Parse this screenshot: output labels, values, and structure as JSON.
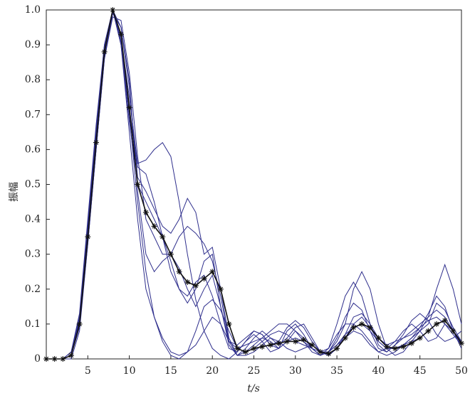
{
  "chart_data": {
    "type": "line",
    "x_label": "t/s",
    "y_label": "振幅",
    "x": [
      0,
      1,
      2,
      3,
      4,
      5,
      6,
      7,
      8,
      9,
      10,
      11,
      12,
      13,
      14,
      15,
      16,
      17,
      18,
      19,
      20,
      21,
      22,
      23,
      24,
      25,
      26,
      27,
      28,
      29,
      30,
      31,
      32,
      33,
      34,
      35,
      36,
      37,
      38,
      39,
      40,
      41,
      42,
      43,
      44,
      45,
      46,
      47,
      48,
      49,
      50
    ],
    "xlim": [
      0,
      50
    ],
    "ylim": [
      0,
      1
    ],
    "xticks": [
      5,
      10,
      15,
      20,
      25,
      30,
      35,
      40,
      45,
      50
    ],
    "yticks": [
      0,
      0.1,
      0.2,
      0.3,
      0.4,
      0.5,
      0.6,
      0.7,
      0.8,
      0.9,
      {
        "value": 1,
        "label": "1.0"
      }
    ],
    "series": [
      {
        "color": "#2e2e8c",
        "values": [
          0,
          0,
          0,
          0.01,
          0.1,
          0.36,
          0.63,
          0.88,
          1.0,
          0.92,
          0.75,
          0.56,
          0.57,
          0.6,
          0.62,
          0.58,
          0.45,
          0.3,
          0.17,
          0.08,
          0.03,
          0.01,
          0,
          0.02,
          0.05,
          0.07,
          0.05,
          0.02,
          0.03,
          0.08,
          0.1,
          0.07,
          0.03,
          0.01,
          0.02,
          0.05,
          0.1,
          0.2,
          0.25,
          0.2,
          0.1,
          0.03,
          0.01,
          0.02,
          0.05,
          0.08,
          0.12,
          0.2,
          0.27,
          0.2,
          0.1
        ]
      },
      {
        "color": "#2e2e8c",
        "values": [
          0,
          0,
          0,
          0.01,
          0.12,
          0.38,
          0.65,
          0.9,
          1.0,
          0.9,
          0.65,
          0.4,
          0.2,
          0.12,
          0.05,
          0.01,
          0,
          0.02,
          0.08,
          0.15,
          0.17,
          0.14,
          0.08,
          0.03,
          0.02,
          0.04,
          0.06,
          0.05,
          0.03,
          0.05,
          0.08,
          0.06,
          0.03,
          0.01,
          0.02,
          0.04,
          0.06,
          0.08,
          0.07,
          0.04,
          0.02,
          0.03,
          0.05,
          0.08,
          0.1,
          0.08,
          0.05,
          0.06,
          0.1,
          0.08,
          0.05
        ]
      },
      {
        "color": "#2e2e8c",
        "values": [
          0,
          0,
          0,
          0,
          0.08,
          0.33,
          0.6,
          0.86,
          0.99,
          0.95,
          0.78,
          0.52,
          0.48,
          0.43,
          0.38,
          0.36,
          0.4,
          0.46,
          0.42,
          0.3,
          0.32,
          0.2,
          0.06,
          0.01,
          0.03,
          0.06,
          0.08,
          0.06,
          0.04,
          0.06,
          0.09,
          0.1,
          0.06,
          0.02,
          0.03,
          0.1,
          0.18,
          0.22,
          0.18,
          0.1,
          0.04,
          0.02,
          0.04,
          0.06,
          0.08,
          0.1,
          0.12,
          0.14,
          0.12,
          0.08,
          0.04
        ]
      },
      {
        "color": "#2e2e8c",
        "values": [
          0,
          0,
          0,
          0.02,
          0.13,
          0.4,
          0.67,
          0.9,
          1.0,
          0.9,
          0.68,
          0.5,
          0.45,
          0.4,
          0.35,
          0.28,
          0.2,
          0.16,
          0.2,
          0.28,
          0.3,
          0.15,
          0.05,
          0.04,
          0.06,
          0.08,
          0.07,
          0.04,
          0.05,
          0.09,
          0.11,
          0.09,
          0.05,
          0.02,
          0.01,
          0.03,
          0.07,
          0.12,
          0.13,
          0.1,
          0.06,
          0.04,
          0.05,
          0.06,
          0.07,
          0.09,
          0.13,
          0.18,
          0.15,
          0.08,
          0.03
        ]
      },
      {
        "color": "#2e2e8c",
        "values": [
          0,
          0,
          0,
          0.01,
          0.1,
          0.34,
          0.6,
          0.87,
          1.0,
          0.95,
          0.8,
          0.48,
          0.3,
          0.25,
          0.28,
          0.3,
          0.26,
          0.2,
          0.15,
          0.2,
          0.24,
          0.15,
          0.04,
          0.01,
          0.01,
          0.02,
          0.04,
          0.06,
          0.05,
          0.03,
          0.02,
          0.03,
          0.04,
          0.02,
          0.01,
          0.03,
          0.06,
          0.1,
          0.12,
          0.09,
          0.05,
          0.03,
          0.03,
          0.04,
          0.05,
          0.06,
          0.08,
          0.1,
          0.11,
          0.08,
          0.05
        ]
      },
      {
        "color": "#2e2e8c",
        "values": [
          0,
          0,
          0,
          0.01,
          0.11,
          0.37,
          0.63,
          0.88,
          1.0,
          0.93,
          0.72,
          0.55,
          0.53,
          0.45,
          0.35,
          0.25,
          0.2,
          0.18,
          0.22,
          0.24,
          0.18,
          0.1,
          0.03,
          0.02,
          0.05,
          0.08,
          0.07,
          0.04,
          0.03,
          0.05,
          0.06,
          0.05,
          0.03,
          0.01,
          0.02,
          0.06,
          0.12,
          0.16,
          0.14,
          0.08,
          0.03,
          0.02,
          0.04,
          0.07,
          0.11,
          0.13,
          0.11,
          0.07,
          0.05,
          0.06,
          0.08
        ]
      },
      {
        "color": "#2e2e8c",
        "values": [
          0,
          0,
          0,
          0.01,
          0.09,
          0.33,
          0.6,
          0.86,
          0.98,
          0.97,
          0.82,
          0.58,
          0.4,
          0.35,
          0.3,
          0.3,
          0.35,
          0.38,
          0.36,
          0.33,
          0.28,
          0.18,
          0.05,
          0.01,
          0.02,
          0.03,
          0.05,
          0.07,
          0.08,
          0.07,
          0.05,
          0.04,
          0.03,
          0.02,
          0.02,
          0.04,
          0.07,
          0.09,
          0.1,
          0.08,
          0.05,
          0.03,
          0.03,
          0.04,
          0.06,
          0.09,
          0.11,
          0.12,
          0.1,
          0.07,
          0.04
        ]
      },
      {
        "color": "#2e2e8c",
        "values": [
          0,
          0,
          0,
          0.02,
          0.12,
          0.39,
          0.66,
          0.89,
          1.0,
          0.91,
          0.7,
          0.45,
          0.25,
          0.12,
          0.06,
          0.02,
          0.01,
          0.02,
          0.04,
          0.08,
          0.12,
          0.1,
          0.05,
          0.03,
          0.04,
          0.05,
          0.06,
          0.08,
          0.1,
          0.1,
          0.08,
          0.05,
          0.02,
          0.01,
          0.03,
          0.07,
          0.1,
          0.1,
          0.08,
          0.05,
          0.02,
          0.01,
          0.02,
          0.04,
          0.06,
          0.08,
          0.1,
          0.16,
          0.14,
          0.09,
          0.05
        ]
      },
      {
        "color": "#111111",
        "marker": "asterisk",
        "values": [
          0,
          0,
          0,
          0.01,
          0.1,
          0.35,
          0.62,
          0.88,
          1.0,
          0.93,
          0.72,
          0.5,
          0.42,
          0.38,
          0.35,
          0.3,
          0.25,
          0.22,
          0.21,
          0.23,
          0.25,
          0.2,
          0.1,
          0.03,
          0.02,
          0.03,
          0.035,
          0.04,
          0.045,
          0.05,
          0.05,
          0.055,
          0.04,
          0.02,
          0.015,
          0.03,
          0.06,
          0.09,
          0.1,
          0.09,
          0.06,
          0.035,
          0.03,
          0.035,
          0.045,
          0.06,
          0.08,
          0.1,
          0.11,
          0.08,
          0.045
        ]
      }
    ]
  }
}
